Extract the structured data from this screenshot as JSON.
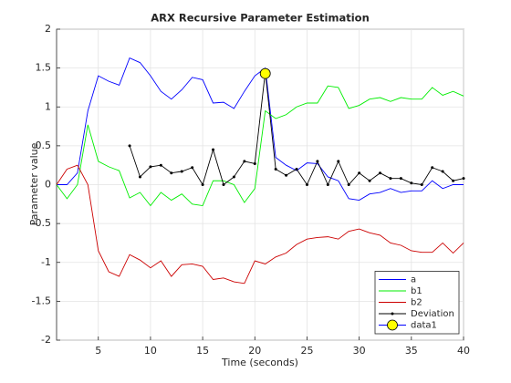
{
  "chart_data": {
    "type": "line",
    "title": "ARX Recursive Parameter Estimation",
    "xlabel": "Time (seconds)",
    "ylabel": "Parameter value",
    "x": [
      1,
      2,
      3,
      4,
      5,
      6,
      7,
      8,
      9,
      10,
      11,
      12,
      13,
      14,
      15,
      16,
      17,
      18,
      19,
      20,
      21,
      22,
      23,
      24,
      25,
      26,
      27,
      28,
      29,
      30,
      31,
      32,
      33,
      34,
      35,
      36,
      37,
      38,
      39,
      40
    ],
    "series": [
      {
        "name": "a",
        "color": "#0000ff",
        "marker": "none",
        "values": [
          0,
          0,
          0.15,
          0.95,
          1.4,
          1.33,
          1.28,
          1.63,
          1.57,
          1.4,
          1.2,
          1.1,
          1.22,
          1.38,
          1.35,
          1.05,
          1.06,
          0.98,
          1.2,
          1.4,
          1.5,
          0.35,
          0.25,
          0.18,
          0.28,
          0.27,
          0.1,
          0.05,
          -0.18,
          -0.2,
          -0.12,
          -0.1,
          -0.05,
          -0.1,
          -0.08,
          -0.08,
          0.05,
          -0.05,
          0,
          0
        ]
      },
      {
        "name": "b1",
        "color": "#00ee00",
        "marker": "none",
        "values": [
          0,
          -0.18,
          0,
          0.77,
          0.3,
          0.23,
          0.18,
          -0.17,
          -0.1,
          -0.27,
          -0.1,
          -0.2,
          -0.12,
          -0.25,
          -0.27,
          0.05,
          0.05,
          0,
          -0.23,
          -0.05,
          0.95,
          0.85,
          0.9,
          1,
          1.05,
          1.05,
          1.27,
          1.25,
          0.98,
          1.02,
          1.1,
          1.12,
          1.07,
          1.12,
          1.1,
          1.1,
          1.25,
          1.15,
          1.2,
          1.14
        ]
      },
      {
        "name": "b2",
        "color": "#cc0000",
        "marker": "none",
        "values": [
          0,
          0.2,
          0.25,
          0,
          -0.85,
          -1.12,
          -1.18,
          -0.9,
          -0.97,
          -1.07,
          -0.98,
          -1.18,
          -1.03,
          -1.02,
          -1.05,
          -1.22,
          -1.2,
          -1.25,
          -1.27,
          -0.98,
          -1.02,
          -0.93,
          -0.88,
          -0.77,
          -0.7,
          -0.68,
          -0.67,
          -0.7,
          -0.6,
          -0.57,
          -0.62,
          -0.65,
          -0.75,
          -0.78,
          -0.85,
          -0.87,
          -0.87,
          -0.75,
          -0.88,
          -0.75
        ]
      },
      {
        "name": "Deviation",
        "color": "#000000",
        "marker": "dot",
        "values": [
          null,
          null,
          null,
          null,
          null,
          null,
          null,
          0.5,
          0.1,
          0.23,
          0.25,
          0.15,
          0.17,
          0.22,
          0,
          0.45,
          0,
          0.1,
          0.3,
          0.27,
          1.45,
          0.2,
          0.12,
          0.2,
          0,
          0.3,
          0,
          0.3,
          0,
          0.15,
          0.05,
          0.15,
          0.08,
          0.08,
          0.02,
          0,
          0.22,
          0.17,
          0.05,
          0.08
        ]
      },
      {
        "name": "data1",
        "color": "#0000ff",
        "marker": "circle",
        "marker_face": "#ffff00",
        "values": [
          null,
          null,
          null,
          null,
          null,
          null,
          null,
          null,
          null,
          null,
          null,
          null,
          null,
          null,
          null,
          null,
          null,
          null,
          null,
          null,
          1.43,
          null,
          null,
          null,
          null,
          null,
          null,
          null,
          null,
          null,
          null,
          null,
          null,
          null,
          null,
          null,
          null,
          null,
          null,
          null
        ]
      }
    ],
    "xlim": [
      1,
      40
    ],
    "xticks": [
      5,
      10,
      15,
      20,
      25,
      30,
      35,
      40
    ],
    "ylim": [
      -2,
      2
    ],
    "yticks": [
      -2,
      -1.5,
      -1,
      -0.5,
      0,
      0.5,
      1,
      1.5,
      2
    ],
    "grid": true,
    "legend": "southeast"
  }
}
